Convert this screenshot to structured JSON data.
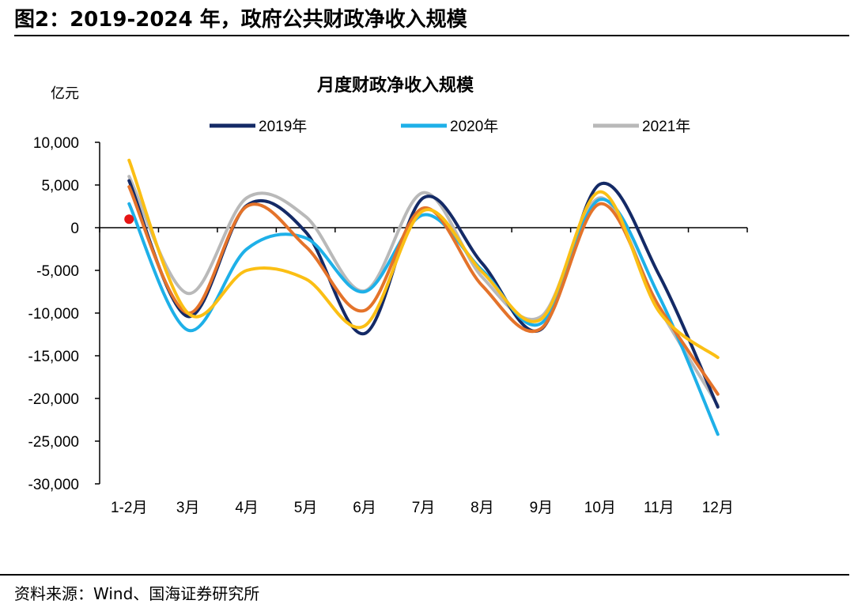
{
  "figure": {
    "label": "图2：",
    "title": "2019-2024 年，政府公共财政净收入规模",
    "source": "资料来源：Wind、国海证券研究所"
  },
  "chart_data": {
    "type": "line",
    "title": "月度财政净收入规模",
    "ylabel": "亿元",
    "xlabel": "",
    "categories": [
      "1-2月",
      "3月",
      "4月",
      "5月",
      "6月",
      "7月",
      "8月",
      "9月",
      "10月",
      "11月",
      "12月"
    ],
    "ylim": [
      -30000,
      10000
    ],
    "yticks": [
      10000,
      5000,
      0,
      -5000,
      -10000,
      -15000,
      -20000,
      -25000,
      -30000
    ],
    "ytick_labels": [
      "10,000",
      "5,000",
      "0",
      "-5,000",
      "-10,000",
      "-15,000",
      "-20,000",
      "-25,000",
      "-30,000"
    ],
    "legend_position": "top",
    "series": [
      {
        "name": "2019年",
        "color": "#142a66",
        "in_legend": true,
        "values": [
          5500,
          -10400,
          2600,
          -500,
          -12400,
          3500,
          -4200,
          -11900,
          5100,
          -5500,
          -21000
        ]
      },
      {
        "name": "2020年",
        "color": "#1eb0e8",
        "in_legend": true,
        "values": [
          2800,
          -12000,
          -2500,
          -1200,
          -7500,
          1500,
          -5000,
          -11200,
          3300,
          -8000,
          -24200
        ]
      },
      {
        "name": "2021年",
        "color": "#b9b9b9",
        "in_legend": true,
        "values": [
          6000,
          -7700,
          3500,
          1300,
          -7400,
          4100,
          -5800,
          -10400,
          3500,
          -9400,
          -20800
        ]
      },
      {
        "name": "",
        "color": "#e4732a",
        "in_legend": false,
        "values": [
          4800,
          -10000,
          2500,
          -2200,
          -9700,
          2300,
          -6800,
          -11800,
          2800,
          -9200,
          -19500
        ]
      },
      {
        "name": "",
        "color": "#fbbf14",
        "in_legend": false,
        "values": [
          7900,
          -10000,
          -5000,
          -6000,
          -11500,
          2000,
          -5200,
          -10700,
          4200,
          -9800,
          -15200
        ]
      }
    ],
    "points": [
      {
        "category": "1-2月",
        "value": 1000,
        "color": "#e61414"
      }
    ]
  }
}
